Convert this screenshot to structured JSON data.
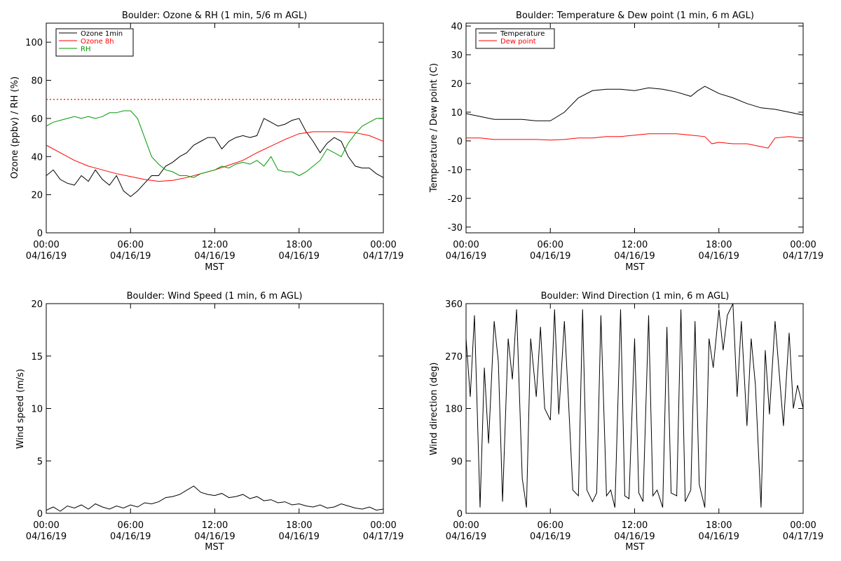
{
  "chart_data": [
    {
      "type": "line",
      "title": "Boulder: Ozone & RH (1 min, 5/6 m AGL)",
      "ylabel": "Ozone (ppbv) / RH (%)",
      "xlabel": "MST",
      "ylim": [
        0,
        110
      ],
      "yticks": [
        0,
        20,
        40,
        60,
        80,
        100
      ],
      "xlim": [
        0,
        24
      ],
      "xticks": [
        {
          "t": 0,
          "time": "00:00",
          "date": "04/16/19"
        },
        {
          "t": 6,
          "time": "06:00",
          "date": "04/16/19"
        },
        {
          "t": 12,
          "time": "12:00",
          "date": "04/16/19"
        },
        {
          "t": 18,
          "time": "18:00",
          "date": "04/16/19"
        },
        {
          "t": 24,
          "time": "00:00",
          "date": "04/17/19"
        }
      ],
      "legend_position": "top-left",
      "reference_line": {
        "y": 70,
        "color": "#ff0000",
        "style": "dotted"
      },
      "series": [
        {
          "name": "Ozone 1min",
          "color": "#000000",
          "x": [
            0,
            0.5,
            1,
            1.5,
            2,
            2.5,
            3,
            3.5,
            4,
            4.5,
            5,
            5.5,
            6,
            6.5,
            7,
            7.5,
            8,
            8.5,
            9,
            9.5,
            10,
            10.5,
            11,
            11.5,
            12,
            12.5,
            13,
            13.5,
            14,
            14.5,
            15,
            15.5,
            16,
            16.5,
            17,
            17.5,
            18,
            18.5,
            19,
            19.5,
            20,
            20.5,
            21,
            21.5,
            22,
            22.5,
            23,
            23.5,
            24
          ],
          "y": [
            30,
            33,
            28,
            26,
            25,
            30,
            27,
            33,
            28,
            25,
            30,
            22,
            19,
            22,
            26,
            30,
            30,
            35,
            37,
            40,
            42,
            46,
            48,
            50,
            50,
            44,
            48,
            50,
            51,
            50,
            51,
            60,
            58,
            56,
            57,
            59,
            60,
            53,
            48,
            42,
            47,
            50,
            48,
            40,
            35,
            34,
            34,
            31,
            29
          ]
        },
        {
          "name": "Ozone 8h",
          "color": "#ff0000",
          "x": [
            0,
            1,
            2,
            3,
            4,
            5,
            6,
            7,
            8,
            9,
            10,
            11,
            12,
            13,
            14,
            15,
            16,
            17,
            18,
            19,
            20,
            21,
            22,
            23,
            24
          ],
          "y": [
            46,
            42,
            38,
            35,
            33,
            31,
            29.5,
            28,
            27,
            27.5,
            29,
            31,
            33,
            35.5,
            38,
            42,
            45.5,
            49,
            52,
            53,
            53,
            53,
            52.5,
            51,
            48
          ]
        },
        {
          "name": "RH",
          "color": "#009900",
          "x": [
            0,
            0.5,
            1,
            1.5,
            2,
            2.5,
            3,
            3.5,
            4,
            4.5,
            5,
            5.5,
            6,
            6.5,
            7,
            7.5,
            8,
            8.5,
            9,
            9.5,
            10,
            10.5,
            11,
            11.5,
            12,
            12.5,
            13,
            13.5,
            14,
            14.5,
            15,
            15.5,
            16,
            16.5,
            17,
            17.5,
            18,
            18.5,
            19,
            19.5,
            20,
            20.5,
            21,
            21.5,
            22,
            22.5,
            23,
            23.5,
            24
          ],
          "y": [
            56,
            58,
            59,
            60,
            61,
            60,
            61,
            60,
            61,
            63,
            63,
            64,
            64,
            60,
            50,
            40,
            36,
            33,
            32,
            30,
            30,
            29,
            31,
            32,
            33,
            35,
            34,
            36,
            37,
            36,
            38,
            35,
            40,
            33,
            32,
            32,
            30,
            32,
            35,
            38,
            44,
            42,
            40,
            47,
            52,
            56,
            58,
            60,
            60
          ]
        }
      ]
    },
    {
      "type": "line",
      "title": "Boulder: Temperature & Dew point (1 min, 6 m AGL)",
      "ylabel": "Temperature / Dew point (C)",
      "xlabel": "MST",
      "ylim": [
        -32,
        41
      ],
      "yticks": [
        -30,
        -20,
        -10,
        0,
        10,
        20,
        30,
        40
      ],
      "xlim": [
        0,
        24
      ],
      "xticks": [
        {
          "t": 0,
          "time": "00:00",
          "date": "04/16/19"
        },
        {
          "t": 6,
          "time": "06:00",
          "date": "04/16/19"
        },
        {
          "t": 12,
          "time": "12:00",
          "date": "04/16/19"
        },
        {
          "t": 18,
          "time": "18:00",
          "date": "04/16/19"
        },
        {
          "t": 24,
          "time": "00:00",
          "date": "04/17/19"
        }
      ],
      "legend_position": "top-left",
      "series": [
        {
          "name": "Temperature",
          "color": "#000000",
          "x": [
            0,
            1,
            2,
            3,
            4,
            5,
            6,
            7,
            8,
            9,
            10,
            11,
            12,
            13,
            14,
            15,
            16,
            16.5,
            17,
            18,
            19,
            20,
            21,
            22,
            23,
            24
          ],
          "y": [
            9.5,
            8.5,
            7.5,
            7.5,
            7.5,
            7,
            7,
            10,
            15,
            17.5,
            18,
            18,
            17.5,
            18.5,
            18,
            17,
            15.5,
            17.5,
            19,
            16.5,
            15,
            13,
            11.5,
            11,
            10,
            9
          ]
        },
        {
          "name": "Dew point",
          "color": "#ff0000",
          "x": [
            0,
            1,
            2,
            3,
            4,
            5,
            6,
            7,
            8,
            9,
            10,
            11,
            12,
            13,
            14,
            15,
            16,
            17,
            17.5,
            18,
            19,
            20,
            21,
            21.5,
            22,
            23,
            24
          ],
          "y": [
            1,
            1,
            0.5,
            0.5,
            0.5,
            0.5,
            0.3,
            0.5,
            1,
            1,
            1.5,
            1.5,
            2,
            2.5,
            2.5,
            2.5,
            2,
            1.5,
            -1,
            -0.5,
            -1,
            -1,
            -2,
            -2.5,
            1,
            1.5,
            1
          ]
        }
      ]
    },
    {
      "type": "line",
      "title": "Boulder: Wind Speed (1 min, 6 m AGL)",
      "ylabel": "Wind speed (m/s)",
      "xlabel": "MST",
      "ylim": [
        0,
        20
      ],
      "yticks": [
        0,
        5,
        10,
        15,
        20
      ],
      "xlim": [
        0,
        24
      ],
      "xticks": [
        {
          "t": 0,
          "time": "00:00",
          "date": "04/16/19"
        },
        {
          "t": 6,
          "time": "06:00",
          "date": "04/16/19"
        },
        {
          "t": 12,
          "time": "12:00",
          "date": "04/16/19"
        },
        {
          "t": 18,
          "time": "18:00",
          "date": "04/16/19"
        },
        {
          "t": 24,
          "time": "00:00",
          "date": "04/17/19"
        }
      ],
      "series": [
        {
          "color": "#000000",
          "x": [
            0,
            0.5,
            1,
            1.5,
            2,
            2.5,
            3,
            3.5,
            4,
            4.5,
            5,
            5.5,
            6,
            6.5,
            7,
            7.5,
            8,
            8.5,
            9,
            9.5,
            10,
            10.5,
            11,
            11.5,
            12,
            12.5,
            13,
            13.5,
            14,
            14.5,
            15,
            15.5,
            16,
            16.5,
            17,
            17.5,
            18,
            18.5,
            19,
            19.5,
            20,
            20.5,
            21,
            21.5,
            22,
            22.5,
            23,
            23.5,
            24
          ],
          "y": [
            0.3,
            0.6,
            0.2,
            0.7,
            0.5,
            0.8,
            0.4,
            0.9,
            0.6,
            0.4,
            0.7,
            0.5,
            0.8,
            0.6,
            1.0,
            0.9,
            1.1,
            1.5,
            1.6,
            1.8,
            2.2,
            2.6,
            2.0,
            1.8,
            1.7,
            1.9,
            1.5,
            1.6,
            1.8,
            1.4,
            1.6,
            1.2,
            1.3,
            1.0,
            1.1,
            0.8,
            0.9,
            0.7,
            0.6,
            0.8,
            0.5,
            0.6,
            0.9,
            0.7,
            0.5,
            0.4,
            0.6,
            0.3,
            0.4
          ]
        }
      ]
    },
    {
      "type": "line",
      "title": "Boulder: Wind Direction (1 min, 6 m AGL)",
      "ylabel": "Wind direction (deg)",
      "xlabel": "MST",
      "ylim": [
        0,
        360
      ],
      "yticks": [
        0,
        90,
        180,
        270,
        360
      ],
      "xlim": [
        0,
        24
      ],
      "xticks": [
        {
          "t": 0,
          "time": "00:00",
          "date": "04/16/19"
        },
        {
          "t": 6,
          "time": "06:00",
          "date": "04/16/19"
        },
        {
          "t": 12,
          "time": "12:00",
          "date": "04/16/19"
        },
        {
          "t": 18,
          "time": "18:00",
          "date": "04/16/19"
        },
        {
          "t": 24,
          "time": "00:00",
          "date": "04/17/19"
        }
      ],
      "series": [
        {
          "color": "#000000",
          "x": [
            0,
            0.3,
            0.6,
            1,
            1.3,
            1.6,
            2,
            2.3,
            2.6,
            3,
            3.3,
            3.6,
            4,
            4.3,
            4.6,
            5,
            5.3,
            5.6,
            6,
            6.3,
            6.6,
            7,
            7.3,
            7.6,
            8,
            8.3,
            8.6,
            9,
            9.3,
            9.6,
            10,
            10.3,
            10.6,
            11,
            11.3,
            11.6,
            12,
            12.3,
            12.6,
            13,
            13.3,
            13.6,
            14,
            14.3,
            14.6,
            15,
            15.3,
            15.6,
            16,
            16.3,
            16.6,
            17,
            17.3,
            17.6,
            18,
            18.3,
            18.6,
            19,
            19.3,
            19.6,
            20,
            20.3,
            20.6,
            21,
            21.3,
            21.6,
            22,
            22.3,
            22.6,
            23,
            23.3,
            23.6,
            24
          ],
          "y": [
            300,
            200,
            340,
            10,
            250,
            120,
            330,
            260,
            20,
            300,
            230,
            350,
            60,
            10,
            300,
            200,
            320,
            180,
            160,
            350,
            170,
            330,
            190,
            40,
            30,
            350,
            40,
            20,
            35,
            340,
            30,
            40,
            10,
            350,
            30,
            25,
            300,
            35,
            20,
            340,
            30,
            40,
            10,
            320,
            35,
            30,
            350,
            20,
            40,
            330,
            50,
            10,
            300,
            250,
            350,
            280,
            340,
            360,
            200,
            330,
            150,
            300,
            220,
            10,
            280,
            170,
            330,
            240,
            150,
            310,
            180,
            220,
            180
          ]
        }
      ]
    }
  ]
}
